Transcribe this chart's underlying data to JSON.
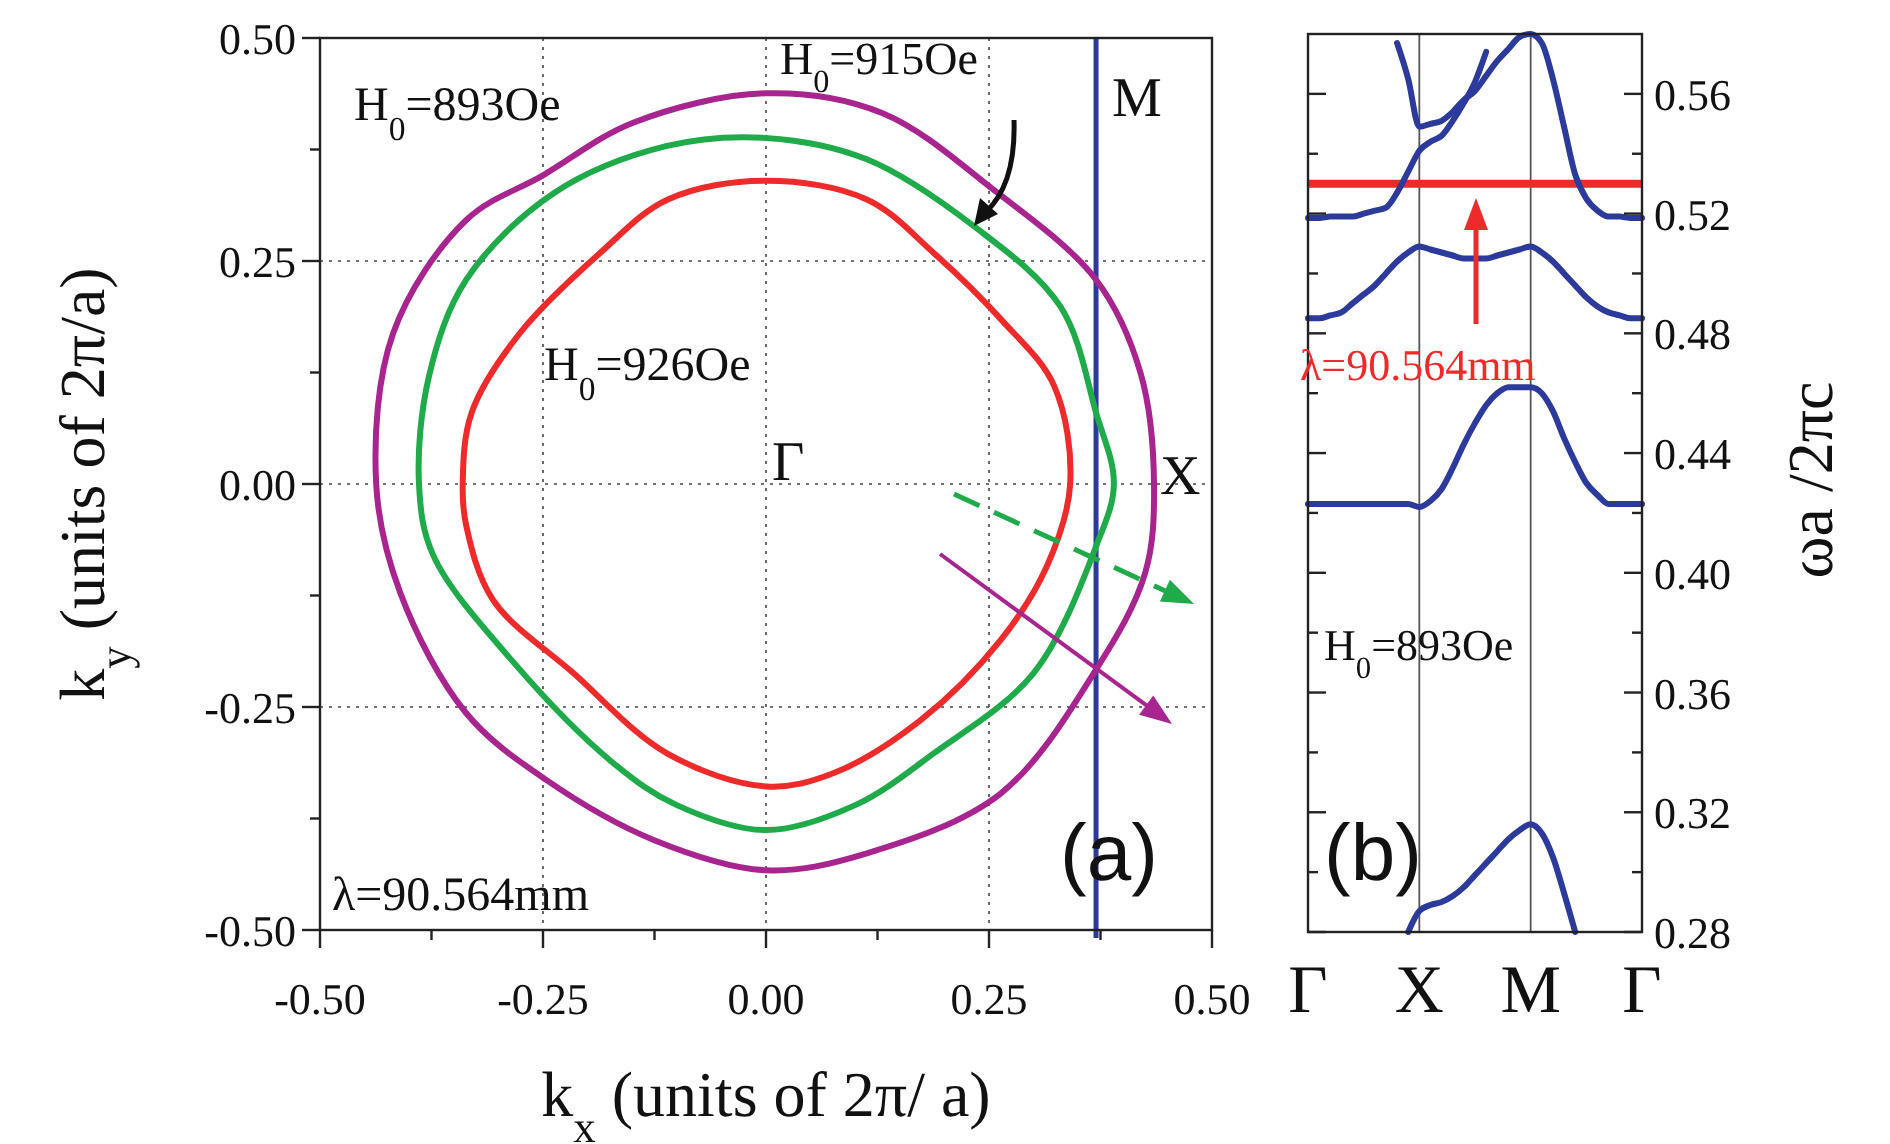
{
  "chart_data": [
    {
      "type": "line",
      "xlabel": "k$_{x}$ (units of 2π/ a)",
      "ylabel": "k$_{y}$ (units of 2π/a)",
      "xlim": [
        -0.5,
        0.5
      ],
      "ylim": [
        -0.5,
        0.5
      ],
      "xticks": [
        {
          "value": -0.5,
          "label": "-0.50"
        },
        {
          "value": -0.375,
          "label": null
        },
        {
          "value": -0.25,
          "label": "-0.25"
        },
        {
          "value": -0.125,
          "label": null
        },
        {
          "value": 0,
          "label": "0.00"
        },
        {
          "value": 0.125,
          "label": null
        },
        {
          "value": 0.25,
          "label": "0.25"
        },
        {
          "value": 0.375,
          "label": null
        },
        {
          "value": 0.5,
          "label": "0.50"
        }
      ],
      "yticks": [
        {
          "value": -0.5,
          "label": "-0.50"
        },
        {
          "value": -0.375,
          "label": null
        },
        {
          "value": -0.25,
          "label": "-0.25"
        },
        {
          "value": -0.125,
          "label": null
        },
        {
          "value": 0,
          "label": "0.00"
        },
        {
          "value": 0.125,
          "label": null
        },
        {
          "value": 0.25,
          "label": "0.25"
        },
        {
          "value": 0.375,
          "label": null
        },
        {
          "value": 0.5,
          "label": "0.50"
        }
      ],
      "grid": true,
      "ref_lines": [
        {
          "axis": "x",
          "value": 0.37,
          "color": "#2b3a9b"
        }
      ],
      "annotations": [
        "H$_{0}$=893Oe",
        "H$_{0}$=915Oe",
        "H$_{0}$=926Oe",
        "Γ",
        "X",
        "M",
        "(a)",
        "λ=90.564mm"
      ]
    },
    {
      "type": "line",
      "y2label": "ωa /2πc",
      "categories": [
        "Γ",
        null,
        null,
        null,
        null,
        null,
        null,
        null,
        null,
        null,
        "X",
        null,
        null,
        null,
        null,
        null,
        null,
        null,
        null,
        null,
        "M",
        null,
        null,
        null,
        null,
        null,
        null,
        null,
        null,
        null,
        "Γ"
      ],
      "y2lim": [
        0.28,
        0.58
      ],
      "y2ticks": [
        {
          "value": 0.28,
          "label": "0.28"
        },
        {
          "value": 0.3,
          "label": null
        },
        {
          "value": 0.32,
          "label": "0.32"
        },
        {
          "value": 0.34,
          "label": null
        },
        {
          "value": 0.36,
          "label": "0.36"
        },
        {
          "value": 0.38,
          "label": null
        },
        {
          "value": 0.4,
          "label": "0.40"
        },
        {
          "value": 0.42,
          "label": null
        },
        {
          "value": 0.44,
          "label": "0.44"
        },
        {
          "value": 0.46,
          "label": null
        },
        {
          "value": 0.48,
          "label": "0.48"
        },
        {
          "value": 0.5,
          "label": null
        },
        {
          "value": 0.52,
          "label": "0.52"
        },
        {
          "value": 0.54,
          "label": null
        },
        {
          "value": 0.56,
          "label": "0.56"
        }
      ],
      "grid": "x",
      "series": [
        {
          "color": "#2b3a9b",
          "axis": "y2",
          "values": [
            null,
            null,
            null,
            null,
            null,
            null,
            null,
            null,
            null,
            0.28,
            0.287,
            0.289,
            0.29,
            0.292,
            0.295,
            0.299,
            0.303,
            0.307,
            0.311,
            0.314,
            0.316,
            0.313,
            0.305,
            0.293,
            0.28,
            null,
            null,
            null,
            null,
            null,
            null
          ]
        },
        {
          "color": "#2b3a9b",
          "axis": "y2",
          "values": [
            0.423,
            0.423,
            0.423,
            0.423,
            0.423,
            0.423,
            0.423,
            0.423,
            0.423,
            0.423,
            0.422,
            0.424,
            0.428,
            0.435,
            0.443,
            0.45,
            0.456,
            0.46,
            0.462,
            0.462,
            0.462,
            0.46,
            0.454,
            0.445,
            0.437,
            0.43,
            0.426,
            0.423,
            0.423,
            0.423,
            0.423
          ]
        },
        {
          "color": "#2b3a9b",
          "axis": "y2",
          "values": [
            0.485,
            0.485,
            0.486,
            0.487,
            0.49,
            0.493,
            0.496,
            0.5,
            0.504,
            0.507,
            0.509,
            0.508,
            0.507,
            0.506,
            0.505,
            0.505,
            0.505,
            0.506,
            0.507,
            0.508,
            0.509,
            0.507,
            0.504,
            0.5,
            0.496,
            0.492,
            0.489,
            0.487,
            0.486,
            0.485,
            0.485
          ]
        },
        {
          "color": "#2b3a9b",
          "axis": "y2",
          "values": [
            0.5185,
            0.5185,
            0.519,
            0.519,
            0.519,
            0.52,
            0.521,
            0.522,
            0.527,
            0.534,
            0.541,
            0.544,
            0.546,
            0.551,
            0.557,
            0.564,
            0.574,
            null,
            null,
            null,
            null,
            null,
            null,
            null,
            null,
            null,
            null,
            null,
            null,
            null,
            null
          ]
        },
        {
          "color": "#2b3a9b",
          "axis": "y2",
          "values": [
            null,
            null,
            null,
            null,
            null,
            null,
            null,
            null,
            0.577,
            0.565,
            0.549,
            0.55,
            0.551,
            0.554,
            0.558,
            0.561,
            0.566,
            0.571,
            0.575,
            0.579,
            0.58,
            0.577,
            0.565,
            0.549,
            0.533,
            0.525,
            0.521,
            0.519,
            0.519,
            0.5185,
            0.5185
          ]
        }
      ],
      "ref_lines": [
        {
          "axis": "y2",
          "value": 0.53,
          "color": "#ee2a2a"
        }
      ],
      "annotations": [
        "H$_{0}$=893Oe",
        "(b)",
        "λ=90.564mm"
      ]
    }
  ]
}
